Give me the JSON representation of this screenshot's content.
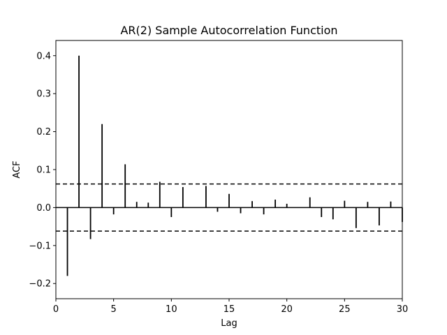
{
  "chart_data": {
    "type": "bar",
    "title": "AR(2) Sample Autocorrelation Function",
    "xlabel": "Lag",
    "ylabel": "ACF",
    "xlim": [
      0,
      30
    ],
    "ylim": [
      -0.24,
      0.44
    ],
    "xticks": [
      0,
      5,
      10,
      15,
      20,
      25,
      30
    ],
    "yticks": [
      -0.2,
      -0.1,
      0.0,
      0.1,
      0.2,
      0.3,
      0.4
    ],
    "ytick_labels": [
      "−0.2",
      "−0.1",
      "0.0",
      "0.1",
      "0.2",
      "0.3",
      "0.4"
    ],
    "lags": [
      1,
      2,
      3,
      4,
      5,
      6,
      7,
      8,
      9,
      10,
      11,
      12,
      13,
      14,
      15,
      16,
      17,
      18,
      19,
      20,
      21,
      22,
      23,
      24,
      25,
      26,
      27,
      28,
      29,
      30
    ],
    "values": [
      -0.18,
      0.4,
      -0.083,
      0.22,
      -0.018,
      0.114,
      0.015,
      0.013,
      0.068,
      -0.025,
      0.054,
      0.0,
      0.057,
      -0.011,
      0.036,
      -0.015,
      0.017,
      -0.018,
      0.021,
      0.01,
      0.0,
      0.027,
      -0.025,
      -0.031,
      0.018,
      -0.054,
      0.015,
      -0.047,
      0.016,
      -0.038
    ],
    "confidence_band": [
      -0.062,
      0.062
    ],
    "grid": false,
    "colors": {
      "stem": "#000000",
      "band": "#000000",
      "zero_line": "#000000"
    }
  }
}
